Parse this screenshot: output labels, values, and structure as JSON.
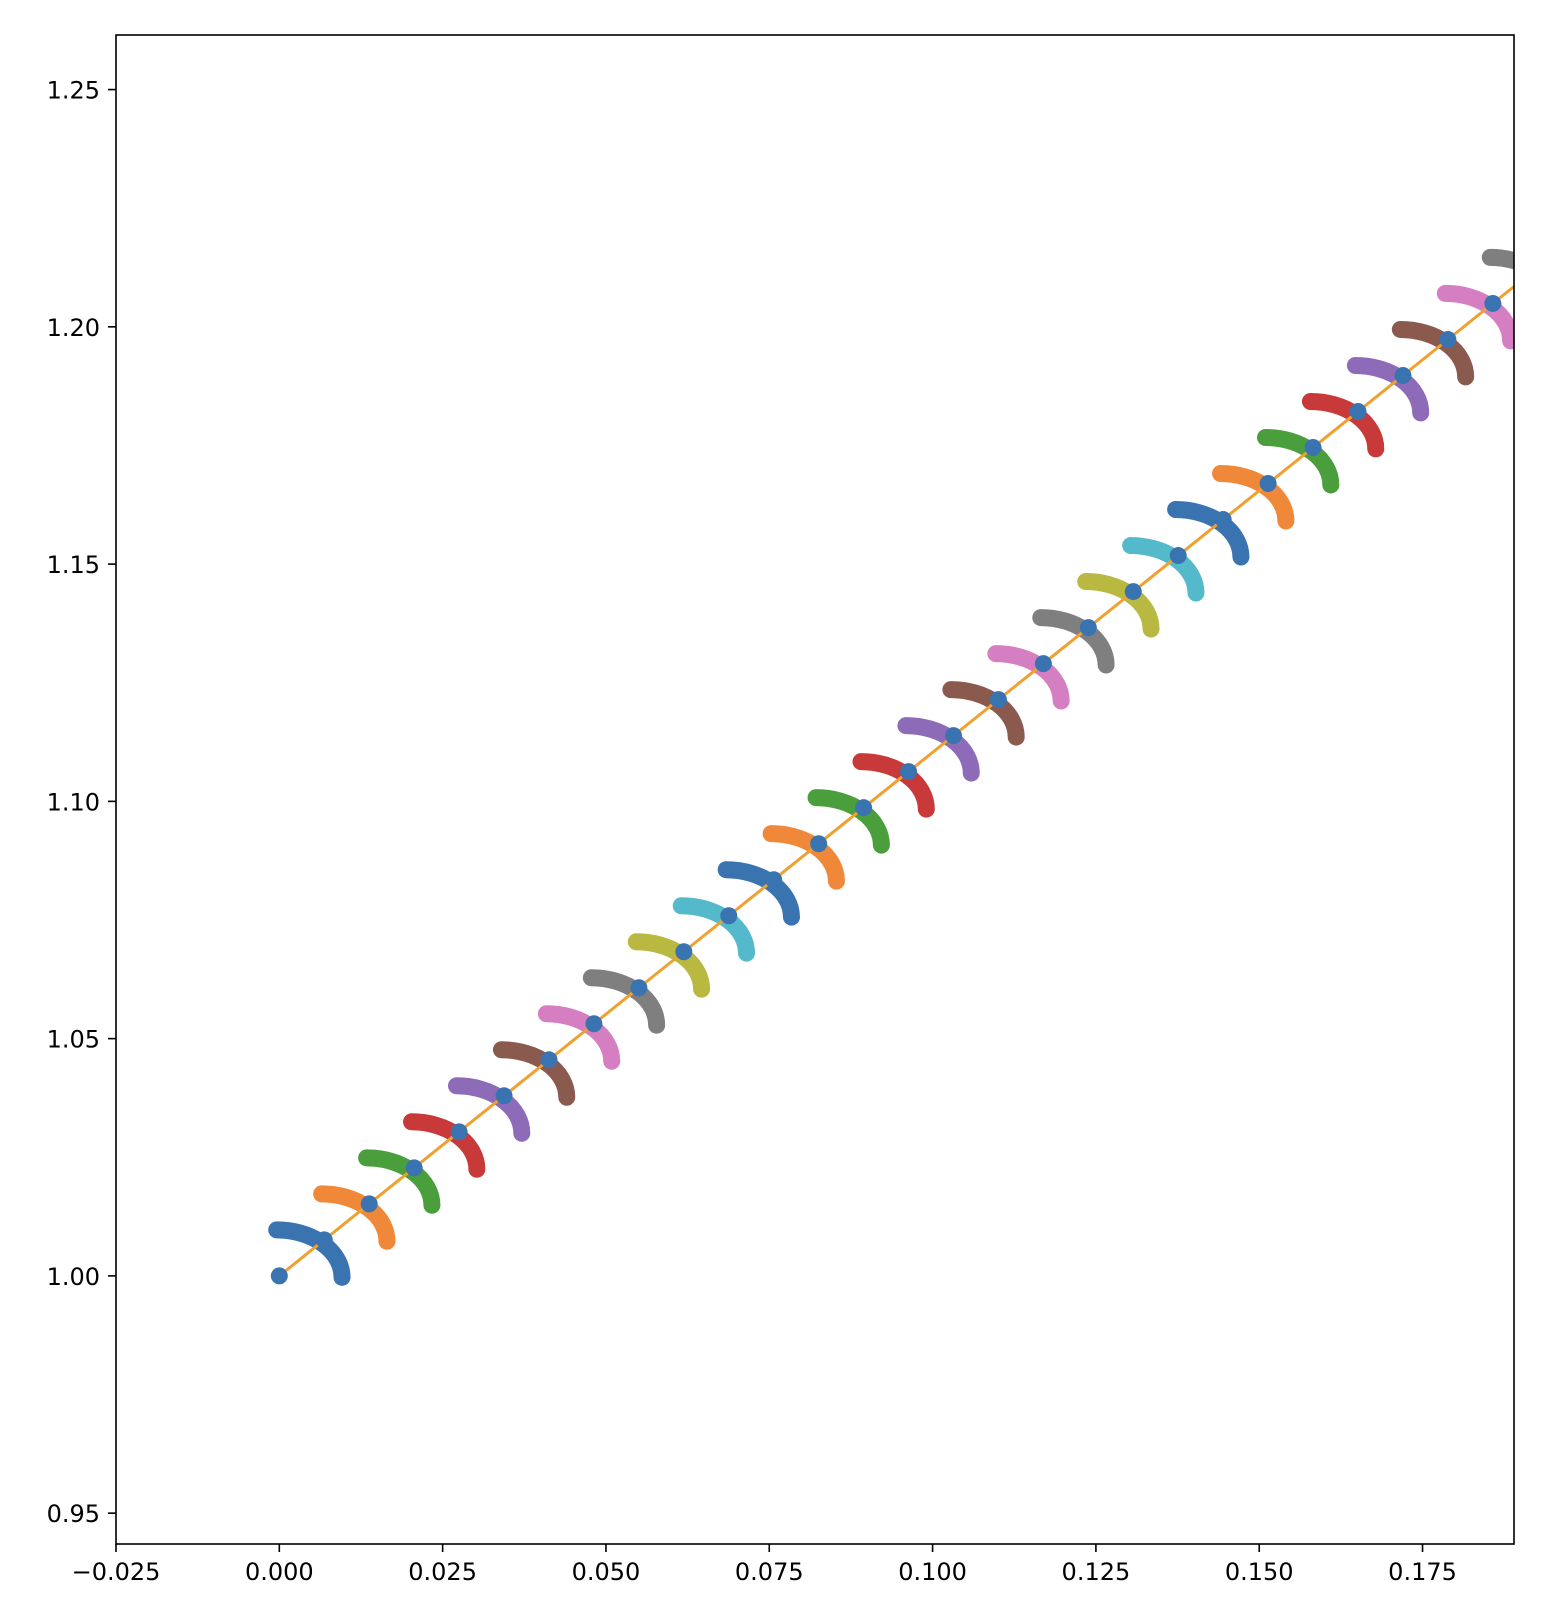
{
  "chart_data": {
    "type": "scatter",
    "title": "",
    "xlabel": "",
    "ylabel": "",
    "xlim": [
      -0.025,
      0.189
    ],
    "ylim": [
      0.9435,
      1.2615
    ],
    "grid": false,
    "legend": "none",
    "x_ticks": [
      {
        "value": -0.025,
        "label": "−0.025"
      },
      {
        "value": 0.0,
        "label": "0.000"
      },
      {
        "value": 0.025,
        "label": "0.025"
      },
      {
        "value": 0.05,
        "label": "0.050"
      },
      {
        "value": 0.075,
        "label": "0.075"
      },
      {
        "value": 0.1,
        "label": "0.100"
      },
      {
        "value": 0.125,
        "label": "0.125"
      },
      {
        "value": 0.15,
        "label": "0.150"
      },
      {
        "value": 0.175,
        "label": "0.175"
      }
    ],
    "y_ticks": [
      {
        "value": 0.95,
        "label": "0.95"
      },
      {
        "value": 1.0,
        "label": "1.00"
      },
      {
        "value": 1.05,
        "label": "1.05"
      },
      {
        "value": 1.1,
        "label": "1.10"
      },
      {
        "value": 1.15,
        "label": "1.15"
      },
      {
        "value": 1.2,
        "label": "1.20"
      },
      {
        "value": 1.25,
        "label": "1.25"
      }
    ],
    "line": {
      "color": "#f0a030",
      "x": [
        0.0,
        0.189
      ],
      "y": [
        1.0,
        1.2085
      ]
    },
    "points": {
      "color": "#3a74b0",
      "dx": 0.00688,
      "dy": 0.00759,
      "count": 28
    },
    "arcs": {
      "radius": 0.01,
      "offset_x": -0.0004,
      "offset_y": -0.0003,
      "colors": [
        "#3a74b0",
        "#f0883a",
        "#4a9e3c",
        "#c8393a",
        "#8e6bb8",
        "#8a5a4e",
        "#d57fc2",
        "#7f7f7f",
        "#b9b941",
        "#55b9cc"
      ],
      "count": 29
    },
    "colors": {
      "axis": "#000000",
      "background": "#ffffff"
    }
  }
}
